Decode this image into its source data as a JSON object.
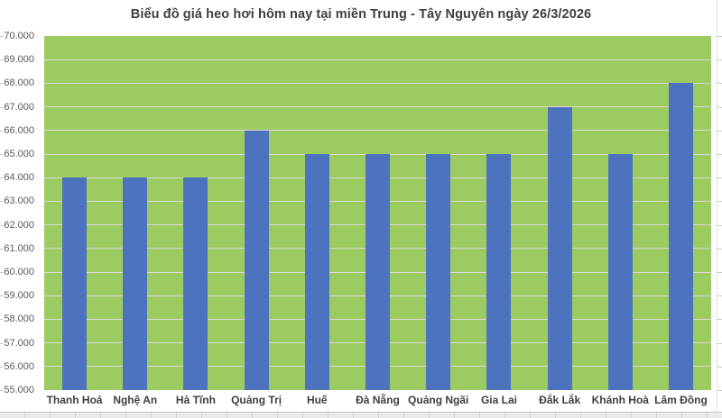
{
  "title": "Biểu đồ giá heo hơi hôm nay tại miền Trung - Tây Nguyên ngày 26/3/2026",
  "chart_data": {
    "type": "bar",
    "title": "Biểu đồ giá heo hơi hôm nay tại miền Trung - Tây Nguyên ngày 26/3/2026",
    "categories": [
      "Thanh Hoá",
      "Nghệ An",
      "Hà Tĩnh",
      "Quảng Trị",
      "Huế",
      "Đà Nẵng",
      "Quảng Ngãi",
      "Gia Lai",
      "Đắk Lắk",
      "Khánh Hoà",
      "Lâm Đồng"
    ],
    "values": [
      64000,
      64000,
      64000,
      66000,
      65000,
      65000,
      65000,
      65000,
      67000,
      65000,
      68000
    ],
    "xlabel": "",
    "ylabel": "",
    "ylim": [
      55000,
      70000
    ],
    "ytick_step": 1000,
    "yticks_display": [
      "70.000",
      "69.000",
      "68.000",
      "67.000",
      "66.000",
      "65.000",
      "64.000",
      "63.000",
      "62.000",
      "61.000",
      "60.000",
      "59.000",
      "58.000",
      "57.000",
      "56.000",
      "55.000"
    ],
    "grid": true,
    "legend": "none",
    "colors": {
      "bar": "#4E73BE",
      "plot_background": "#9CCB61",
      "gridline": "#D9D9D9",
      "title_text": "#3F3F3F",
      "axis_text": "#595959",
      "category_text": "#3F3F3F"
    }
  }
}
